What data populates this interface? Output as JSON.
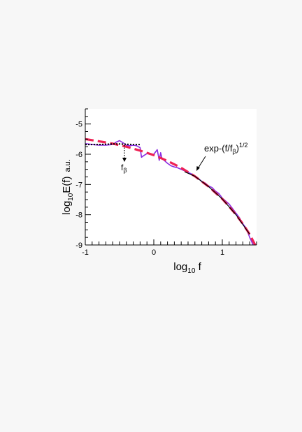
{
  "chart_data": {
    "type": "line",
    "xlabel_main": "log",
    "xlabel_sub": "10",
    "xlabel_tail": " f",
    "ylabel_main": "log",
    "ylabel_sub": "10",
    "ylabel_tail": "E(f)",
    "ylabel_unit": "a.u.",
    "xlim": [
      -1,
      1.5
    ],
    "ylim": [
      -9,
      -4.5
    ],
    "x_ticks": [
      -1,
      0,
      1
    ],
    "x_tick_labels": [
      "-1",
      "0",
      "1"
    ],
    "y_ticks": [
      -9,
      -8,
      -7,
      -6,
      -5
    ],
    "y_tick_labels": [
      "-9",
      "-8",
      "-7",
      "-6",
      "-5"
    ],
    "grid": false,
    "legend": "none",
    "colors": {
      "measured": "#8a2be2",
      "fit": "#ee2255",
      "reference": "#000000"
    },
    "series": [
      {
        "style": "solid",
        "color": "#8a2be2",
        "x": [
          -1.0,
          -0.9,
          -0.8,
          -0.7,
          -0.6,
          -0.55,
          -0.5,
          -0.45,
          -0.4,
          -0.35,
          -0.3,
          -0.25,
          -0.2,
          -0.18,
          -0.15,
          -0.1,
          -0.05,
          0.0,
          0.05,
          0.08,
          0.1,
          0.12,
          0.15,
          0.2,
          0.25,
          0.3,
          0.35,
          0.4,
          0.45,
          0.5,
          0.55,
          0.6,
          0.65,
          0.7,
          0.75,
          0.8,
          0.85,
          0.9,
          0.95,
          1.0,
          1.05,
          1.1,
          1.15,
          1.2,
          1.25,
          1.3,
          1.35,
          1.4,
          1.45
        ],
        "y": [
          -5.65,
          -5.68,
          -5.7,
          -5.7,
          -5.68,
          -5.6,
          -5.55,
          -5.62,
          -5.7,
          -5.72,
          -5.7,
          -5.72,
          -5.78,
          -6.1,
          -6.05,
          -5.98,
          -6.0,
          -6.0,
          -5.85,
          -6.2,
          -5.95,
          -6.15,
          -6.2,
          -6.3,
          -6.38,
          -6.42,
          -6.45,
          -6.5,
          -6.55,
          -6.6,
          -6.65,
          -6.72,
          -6.8,
          -6.9,
          -6.95,
          -7.05,
          -7.1,
          -7.22,
          -7.3,
          -7.45,
          -7.55,
          -7.65,
          -7.8,
          -7.95,
          -8.1,
          -8.3,
          -8.45,
          -8.75,
          -9.0
        ]
      },
      {
        "style": "dashed",
        "color": "#ee2255",
        "x": [
          -1.0,
          -0.8,
          -0.6,
          -0.4,
          -0.2,
          0.0,
          0.2,
          0.4,
          0.6,
          0.8,
          1.0,
          1.1,
          1.2,
          1.3,
          1.4,
          1.48
        ],
        "y": [
          -5.5,
          -5.57,
          -5.65,
          -5.75,
          -5.88,
          -6.03,
          -6.22,
          -6.45,
          -6.73,
          -7.07,
          -7.48,
          -7.73,
          -8.0,
          -8.3,
          -8.65,
          -9.0
        ]
      },
      {
        "style": "dotted",
        "color": "#000000",
        "x": [
          -1.0,
          -0.9,
          -0.8,
          -0.7,
          -0.6,
          -0.5,
          -0.4,
          -0.3,
          -0.2
        ],
        "y": [
          -5.68,
          -5.68,
          -5.68,
          -5.67,
          -5.66,
          -5.66,
          -5.67,
          -5.68,
          -5.68
        ]
      },
      {
        "style": "solid",
        "color": "#000000",
        "x": [
          0.45,
          0.6,
          0.8,
          1.0,
          1.2,
          1.4
        ],
        "y": [
          -6.58,
          -6.73,
          -7.07,
          -7.48,
          -8.0,
          -8.65
        ]
      }
    ],
    "annotations": [
      {
        "label": "exp-(f/f",
        "sub": "β",
        "tail": ")",
        "sup": "1/2"
      },
      {
        "label": "f",
        "sub": "β"
      }
    ]
  }
}
